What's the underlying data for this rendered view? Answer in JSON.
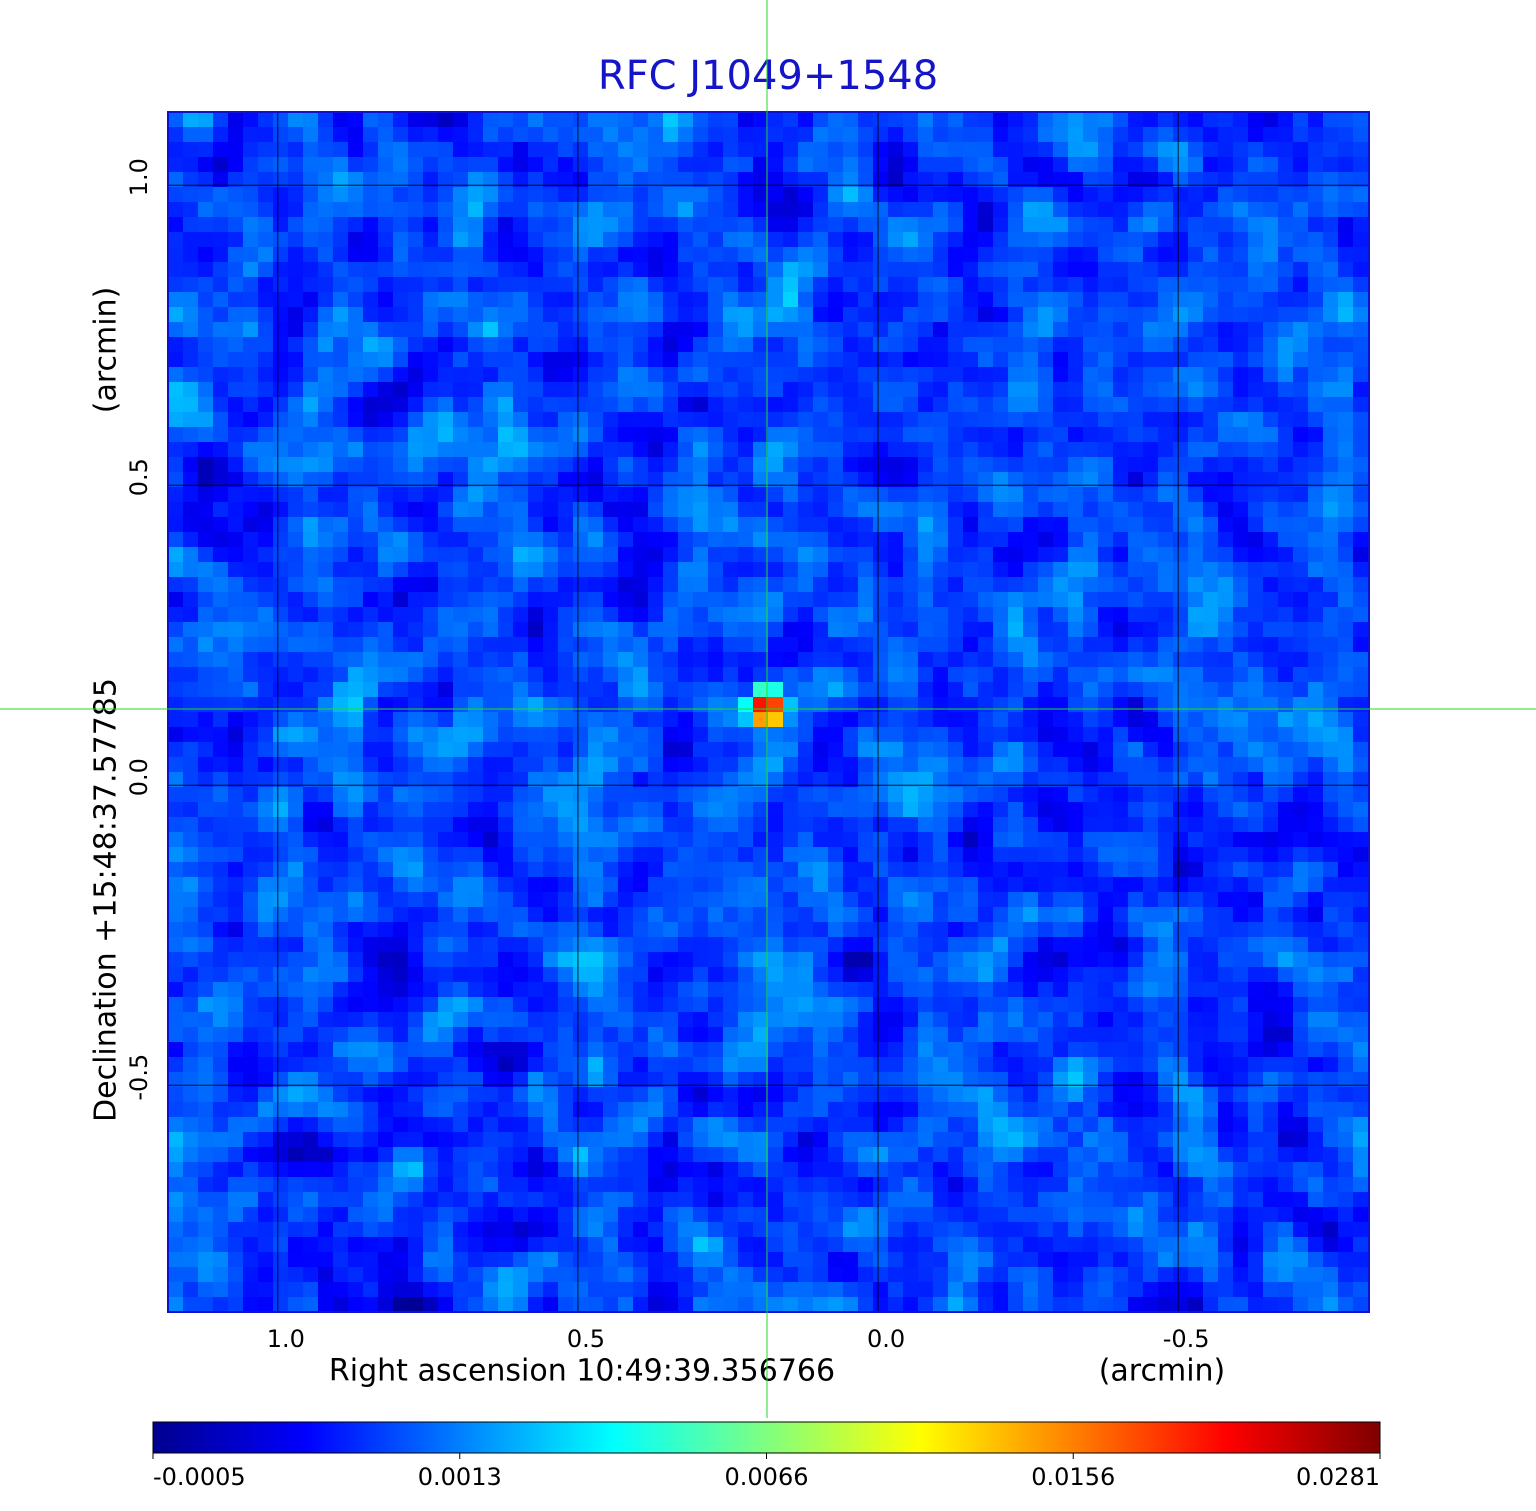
{
  "chart_data": {
    "type": "image",
    "title": "RFC J1049+1548",
    "xlabel": "Right ascension  10:49:39.356766",
    "xunit": "(arcmin)",
    "ylabel": "Declination  +15:48:37.57785",
    "yunit": "(arcmin)",
    "xlim": [
      1.183,
      -0.818
    ],
    "ylim": [
      -0.878,
      1.122
    ],
    "xticks": [
      {
        "value": 1,
        "label": "1.0"
      },
      0.5,
      {
        "value": 0,
        "label": "0.0"
      },
      -0.5
    ],
    "yticks": [
      {
        "value": 1,
        "label": "1.0"
      },
      0.5,
      {
        "value": 0,
        "label": "0.0"
      },
      -0.5
    ],
    "grid": true,
    "crosshair": {
      "x": 0.185,
      "y": 0.127
    },
    "colormap": "jet",
    "colorbar_ticks": [
      -0.0005,
      0.0013,
      0.0066,
      0.0156,
      0.0281
    ]
  }
}
